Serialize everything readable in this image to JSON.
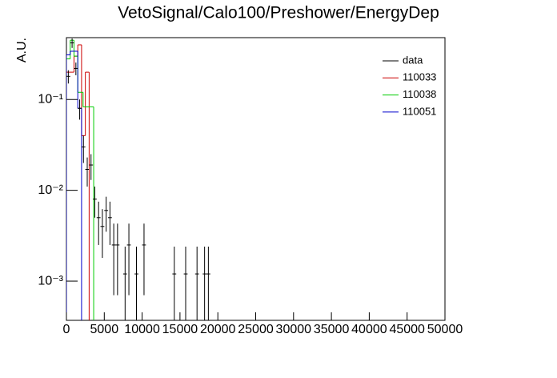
{
  "chart_data": {
    "type": "histogram",
    "title": "VetoSignal/Calo100/Preshower/EnergyDep",
    "y_label": "A.U.",
    "xlim": [
      0,
      50000
    ],
    "xticks": [
      0,
      5000,
      10000,
      15000,
      20000,
      25000,
      30000,
      35000,
      40000,
      45000,
      50000
    ],
    "ylim": [
      0.00037,
      0.48
    ],
    "log_y": true,
    "yticks": [
      {
        "value": 0.001,
        "label": "10⁻³"
      },
      {
        "value": 0.01,
        "label": "10⁻²"
      },
      {
        "value": 0.1,
        "label": "10⁻¹"
      }
    ],
    "legend": "upper right",
    "data": {
      "name": "data",
      "color": "#000000",
      "x": [
        250,
        750,
        1250,
        1750,
        2250,
        2750,
        3250,
        3750,
        4250,
        4750,
        5250,
        5750,
        6250,
        6750,
        7750,
        8250,
        9250,
        10250,
        14250,
        15750,
        17250,
        18250,
        18750
      ],
      "values": [
        0.18,
        0.42,
        0.22,
        0.08,
        0.03,
        0.017,
        0.019,
        0.008,
        0.005,
        0.004,
        0.006,
        0.005,
        0.0025,
        0.0025,
        0.0012,
        0.0025,
        0.0012,
        0.0025,
        0.0012,
        0.0012,
        0.0012,
        0.0012,
        0.0012
      ],
      "errors": [
        0.03,
        0.05,
        0.035,
        0.02,
        0.01,
        0.006,
        0.006,
        0.003,
        0.0025,
        0.0022,
        0.0025,
        0.0025,
        0.0018,
        0.0018,
        0.0012,
        0.0018,
        0.0012,
        0.0018,
        0.0012,
        0.0012,
        0.0012,
        0.0012,
        0.0012
      ]
    },
    "series": [
      {
        "name": "110033",
        "color": "#cc0000",
        "bins": [
          0,
          1000,
          1500,
          2000,
          2500,
          3000
        ],
        "values": [
          0.2,
          0.3,
          0.4,
          0.04,
          0.2
        ]
      },
      {
        "name": "110038",
        "color": "#00cc00",
        "bins": [
          0,
          500,
          1000,
          1500,
          2200,
          3600
        ],
        "values": [
          0.28,
          0.45,
          0.3,
          0.12,
          0.083
        ]
      },
      {
        "name": "110051",
        "color": "#0000cc",
        "bins": [
          0,
          500,
          1500,
          2000
        ],
        "values": [
          0.31,
          0.34,
          0.08
        ]
      }
    ]
  }
}
